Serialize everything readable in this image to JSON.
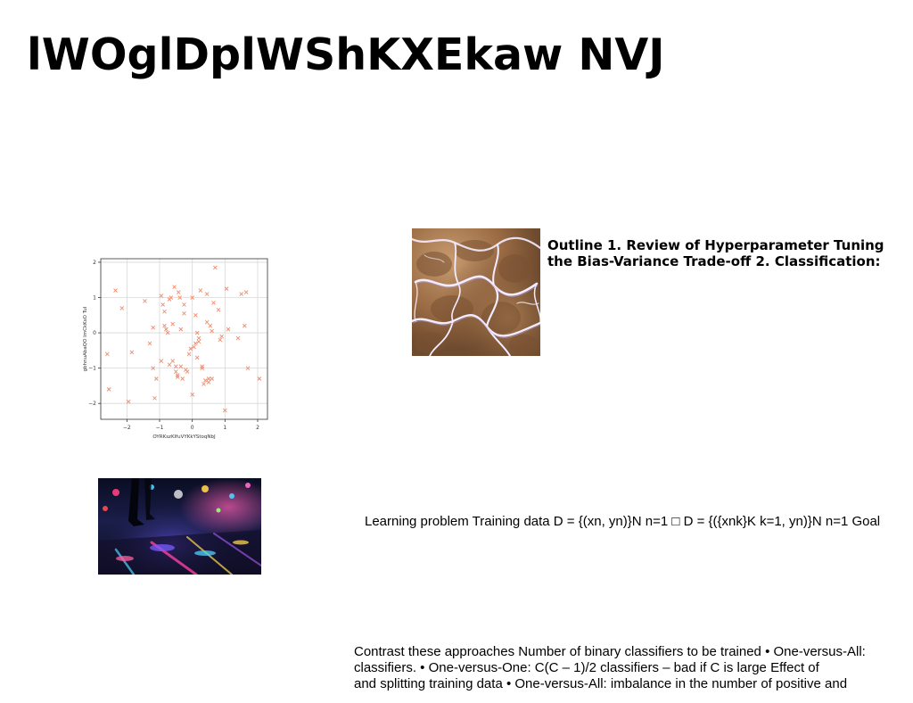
{
  "slide": {
    "title": "lWOglDplWShKXEkaw NVJ",
    "outline": {
      "line1": "Outline 1. Review of Hyperparameter Tuning",
      "line2": "the Bias-Variance Trade-off 2. Classification:"
    },
    "learning_problem": "Learning problem Training data D = {(xn, yn)}N n=1 □ D = {({xnk}K k=1, yn)}N n=1 Goal",
    "contrast": {
      "line1": "Contrast these approaches Number of binary classifiers to be trained • One-versus-All:",
      "line2": "classifiers. • One-versus-One: C(C – 1)/2 classifiers – bad if C is large Effect of",
      "line3": "and splitting training data • One-versus-All: imbalance in the number of positive and"
    }
  },
  "images": {
    "water": "water-ripple-photo",
    "street": "night-street-reflection-photo"
  },
  "chart_data": {
    "type": "scatter",
    "title": "",
    "xlabel": "OYRKszKIfuVYKkYStoqNbJ",
    "ylabel": "gbhnuAbaQO ImCkKsO TuI",
    "xlim": [
      -2.8,
      2.3
    ],
    "ylim": [
      -2.45,
      2.1
    ],
    "xticks": [
      -2,
      -1,
      0,
      1,
      2
    ],
    "yticks": [
      -2,
      -1,
      0,
      1,
      2
    ],
    "xtick_labels": [
      "−2",
      "−1",
      "0",
      "1",
      "2"
    ],
    "ytick_labels": [
      "−2",
      "−1",
      "0",
      "1",
      "2"
    ],
    "grid": true,
    "marker": "x",
    "color": "#f08c6e",
    "series": [
      {
        "name": "points",
        "x": [
          -2.35,
          -2.15,
          -1.85,
          -2.6,
          -2.55,
          -1.95,
          -1.45,
          -1.3,
          -1.2,
          -1.1,
          -1.15,
          -0.95,
          -0.9,
          -0.85,
          -0.8,
          -0.75,
          -0.7,
          -0.65,
          -0.6,
          -0.55,
          -0.5,
          -0.45,
          -0.42,
          -0.38,
          -0.35,
          -0.3,
          -0.25,
          -0.2,
          -0.15,
          -0.1,
          -0.05,
          0.0,
          0.05,
          0.1,
          0.15,
          0.2,
          0.25,
          0.3,
          0.35,
          0.4,
          0.45,
          0.5,
          0.55,
          0.6,
          0.65,
          0.7,
          0.8,
          0.9,
          1.0,
          1.05,
          1.1,
          1.4,
          1.5,
          1.6,
          1.65,
          1.7,
          2.05,
          -0.95,
          -0.6,
          -0.35,
          -0.85,
          -0.45,
          0.1,
          0.3,
          0.5,
          -1.2,
          -0.7,
          0.2,
          0.6,
          -0.25,
          0.0,
          0.45,
          0.85,
          -0.5,
          0.15
        ],
        "y": [
          1.2,
          0.7,
          -0.55,
          -0.6,
          -1.6,
          -1.95,
          0.9,
          -0.3,
          -1.0,
          -1.3,
          -1.85,
          1.05,
          0.8,
          0.2,
          0.1,
          0.0,
          -0.9,
          1.0,
          -0.8,
          1.3,
          -1.1,
          -1.25,
          1.15,
          1.0,
          -0.95,
          -1.3,
          0.8,
          -1.05,
          -1.1,
          -0.6,
          -0.45,
          1.0,
          -0.4,
          0.5,
          -0.7,
          -0.25,
          1.2,
          -0.95,
          -1.45,
          -1.35,
          0.3,
          -1.3,
          0.2,
          0.05,
          0.85,
          1.85,
          0.65,
          -0.1,
          -2.2,
          1.25,
          0.1,
          -0.15,
          1.1,
          0.2,
          1.15,
          -1.0,
          -1.3,
          -0.8,
          0.25,
          0.1,
          0.6,
          -1.2,
          -0.3,
          -1.0,
          -1.4,
          0.15,
          0.95,
          -0.15,
          -1.3,
          0.55,
          -1.75,
          1.1,
          -0.2,
          -0.95,
          0.0
        ]
      }
    ]
  }
}
